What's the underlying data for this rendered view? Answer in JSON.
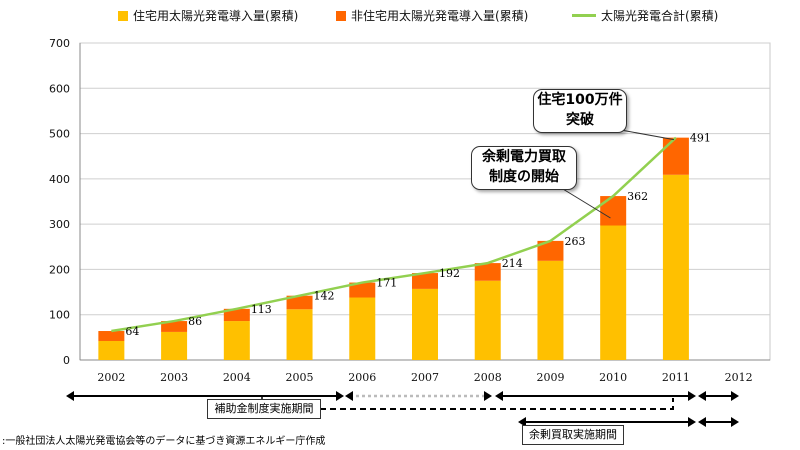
{
  "chart_data": {
    "type": "bar",
    "stacked": true,
    "categories": [
      "2002",
      "2003",
      "2004",
      "2005",
      "2006",
      "2007",
      "2008",
      "2009",
      "2010",
      "2011",
      "2012"
    ],
    "series": [
      {
        "name": "住宅用太陽光発電導入量(累積)",
        "color": "#FFC000",
        "values": [
          42,
          62,
          86,
          112,
          138,
          157,
          175,
          219,
          297,
          409,
          null
        ]
      },
      {
        "name": "非住宅用太陽光発電導入量(累積)",
        "color": "#FF6600",
        "values": [
          22,
          24,
          27,
          30,
          33,
          35,
          39,
          44,
          65,
          82,
          null
        ]
      },
      {
        "name": "太陽光発電合計(累積)",
        "type": "line",
        "color": "#92D050",
        "values": [
          64,
          86,
          113,
          142,
          171,
          192,
          214,
          263,
          362,
          491,
          null
        ]
      }
    ],
    "data_labels": [
      "64",
      "86",
      "113",
      "142",
      "171",
      "192",
      "214",
      "263",
      "362",
      "491"
    ],
    "yticks": [
      "0",
      "100",
      "200",
      "300",
      "400",
      "500",
      "600",
      "700"
    ],
    "ylim": [
      0,
      700
    ],
    "grid": true,
    "legend_position": "top",
    "annotations": [
      {
        "id": "surplus",
        "lines": [
          "余剰電力買取",
          "制度の開始"
        ]
      },
      {
        "id": "million",
        "lines": [
          "住宅100万件",
          "突破"
        ]
      }
    ]
  },
  "periods": {
    "subsidy_label": "補助金制度実施期間",
    "surplus_label": "余剰買取実施期間"
  },
  "source": ":一般社団法人太陽光発電協会等のデータに基づき資源エネルギー庁作成"
}
